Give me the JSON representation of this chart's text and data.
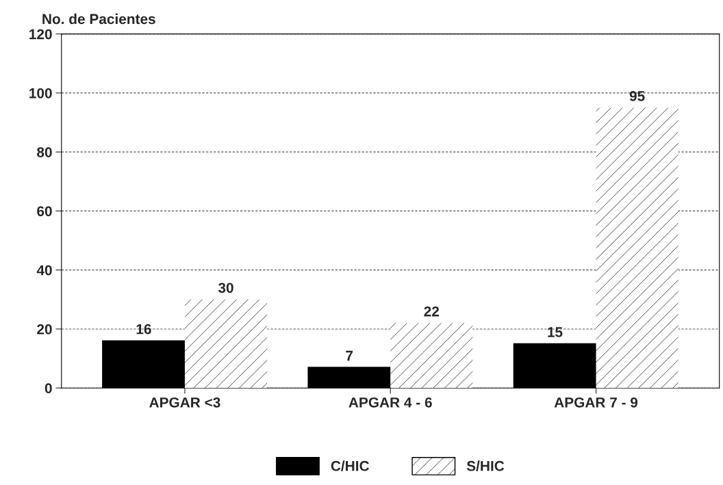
{
  "chart_data": {
    "type": "bar",
    "ylabel": "No. de Pacientes",
    "categories": [
      "APGAR <3",
      "APGAR 4 - 6",
      "APGAR 7 - 9"
    ],
    "series": [
      {
        "name": "C/HIC",
        "color": "#000000",
        "values": [
          16,
          7,
          15
        ]
      },
      {
        "name": "S/HIC",
        "color": "#ffffff",
        "values": [
          30,
          22,
          95
        ]
      }
    ],
    "ylim": [
      0,
      120
    ],
    "yticks": [
      0,
      20,
      40,
      60,
      80,
      100,
      120
    ],
    "grid": "y",
    "legend": "bottom",
    "data_labels": true
  }
}
